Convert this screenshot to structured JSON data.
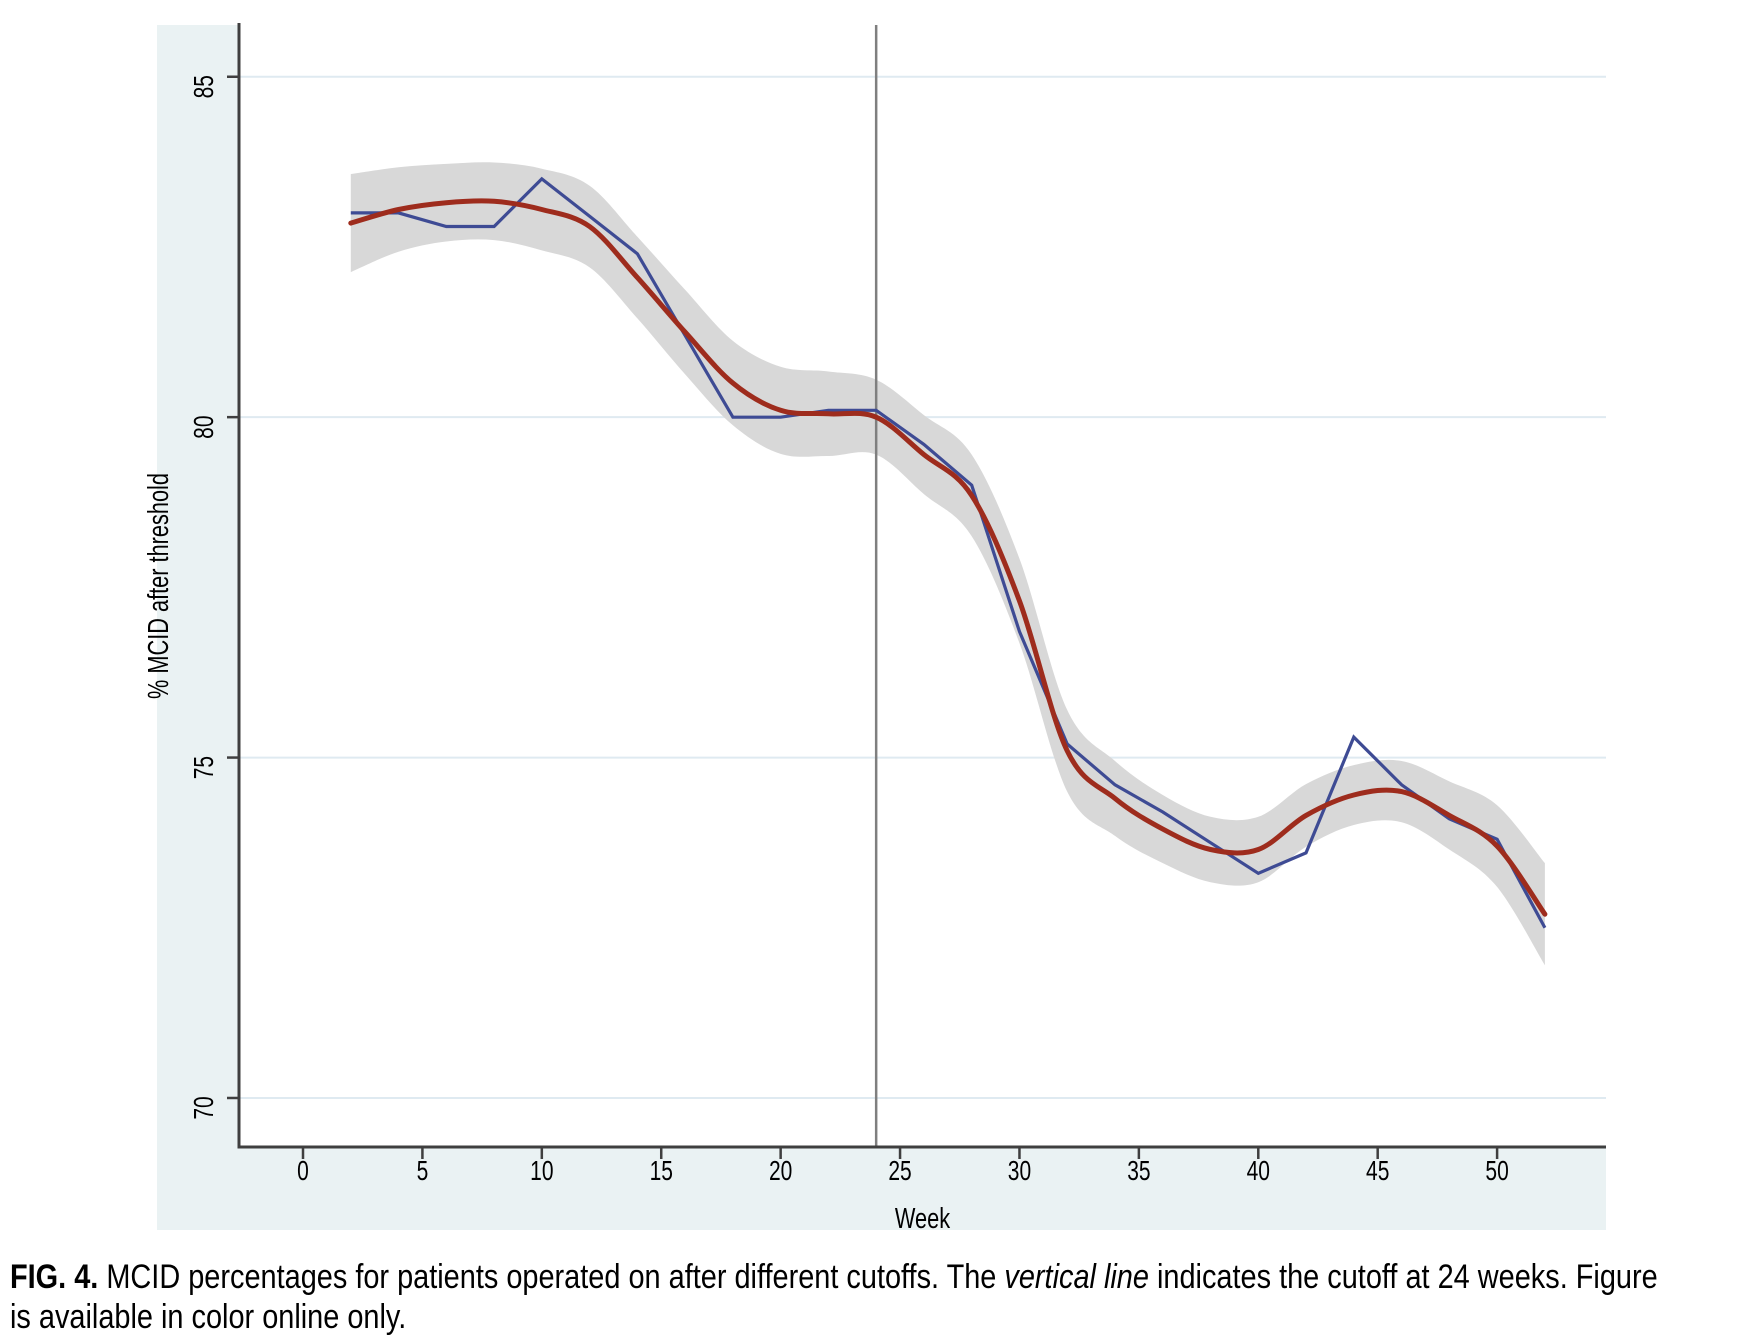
{
  "figure": {
    "caption": {
      "line1": {
        "label": "FIG. 4.",
        "text1": " MCID percentages for patients operated on after different cutoffs. The ",
        "italic": "vertical line",
        "text2": " indicates the cutoff at 24 weeks. Figure"
      },
      "line2": "is available in color online only."
    }
  },
  "chart_data": {
    "type": "line",
    "title": "",
    "xlabel": "Week",
    "ylabel": "% MCID after threshold",
    "xlim": [
      -2.68,
      54.56
    ],
    "ylim": [
      69.28,
      85.76
    ],
    "xticks": [
      0,
      5,
      10,
      15,
      20,
      25,
      30,
      35,
      40,
      45,
      50
    ],
    "yticks": [
      70,
      75,
      80,
      85
    ],
    "grid": "horizontal-only",
    "legend": "none",
    "cutoff_week": 24,
    "weeks": [
      2,
      4,
      6,
      8,
      10,
      12,
      14,
      16,
      18,
      20,
      22,
      24,
      26,
      28,
      30,
      32,
      34,
      36,
      38,
      40,
      42,
      44,
      46,
      48,
      50,
      52
    ],
    "series": [
      {
        "name": "observed-percentage",
        "style": "jagged-line",
        "color": "#3e4b94",
        "values": [
          83.0,
          83.0,
          82.8,
          82.8,
          83.5,
          82.95,
          82.4,
          81.2,
          80.0,
          80.0,
          80.1,
          80.1,
          79.6,
          79.0,
          76.85,
          75.2,
          74.6,
          74.2,
          73.75,
          73.3,
          73.6,
          75.3,
          74.6,
          74.1,
          73.8,
          72.5
        ]
      },
      {
        "name": "smoothed-fit",
        "style": "smooth-line",
        "color": "#9e2c1d",
        "values": [
          82.85,
          83.05,
          83.15,
          83.17,
          83.05,
          82.8,
          82.05,
          81.25,
          80.5,
          80.1,
          80.05,
          80.0,
          79.45,
          78.85,
          77.3,
          75.1,
          74.4,
          73.95,
          73.65,
          73.65,
          74.15,
          74.45,
          74.5,
          74.15,
          73.7,
          72.7
        ]
      },
      {
        "name": "confidence-band-halfwidth",
        "style": "band",
        "color": "#d8d8d8",
        "values": [
          0.72,
          0.62,
          0.57,
          0.57,
          0.6,
          0.6,
          0.6,
          0.62,
          0.62,
          0.64,
          0.62,
          0.55,
          0.58,
          0.6,
          0.62,
          0.6,
          0.55,
          0.5,
          0.48,
          0.48,
          0.46,
          0.44,
          0.45,
          0.5,
          0.6,
          0.75
        ]
      }
    ],
    "colors": {
      "outer_background": "#eaf2f3",
      "plot_background": "#ffffff",
      "gridline": "#dfeaf1",
      "axis": "#3f3f3f",
      "cutoff_line": "#7f7f7f",
      "text": "#000000"
    }
  }
}
